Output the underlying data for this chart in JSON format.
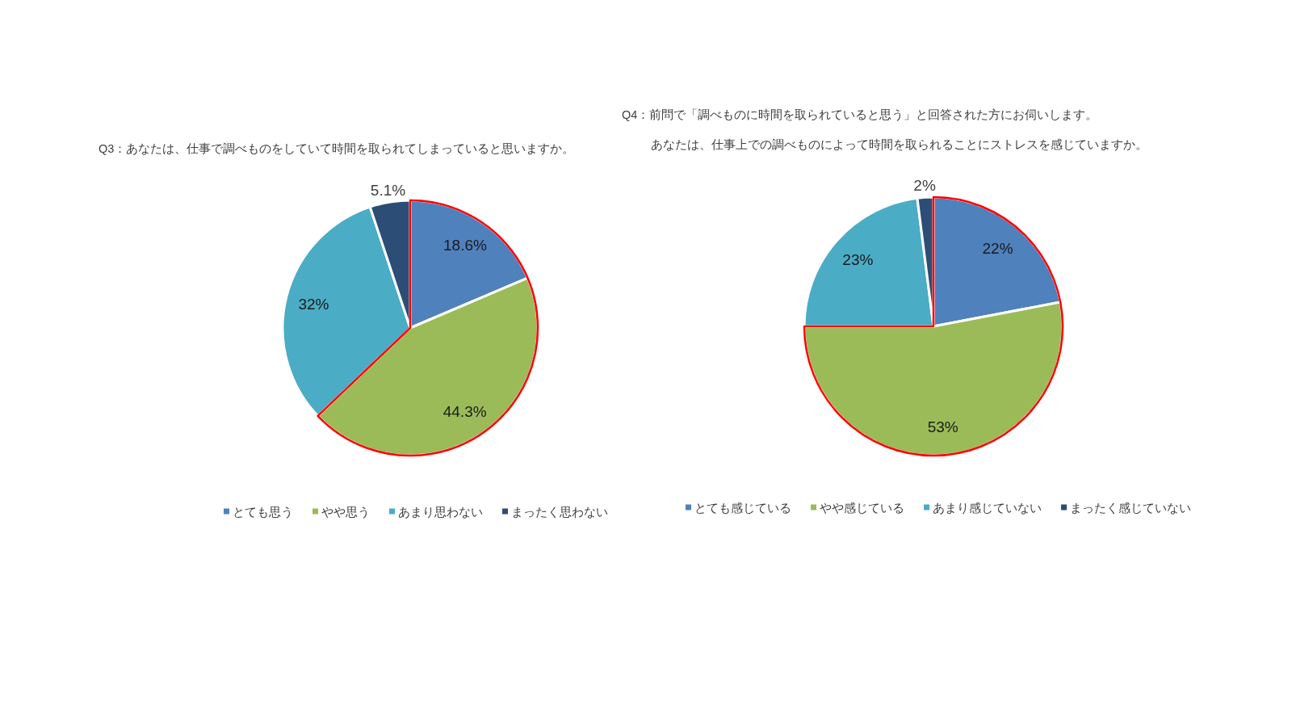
{
  "chart_data": [
    {
      "type": "pie",
      "title": "Q3：あなたは、仕事で調べものをしていて時間を取られてしまっていると思いますか。",
      "categories": [
        "とても思う",
        "やや思う",
        "あまり思わない",
        "まったく思わない"
      ],
      "values": [
        18.6,
        44.3,
        32,
        5.1
      ],
      "colors": [
        "#4f81bd",
        "#9bbb59",
        "#4bacc6",
        "#2c4d75"
      ],
      "value_labels": [
        "18.6%",
        "44.3%",
        "32%",
        "5.1%"
      ],
      "legend": "bottom"
    },
    {
      "type": "pie",
      "title": "Q4：前問で「調べものに時間を取られていると思う」と回答された方にお伺いします。",
      "subtitle": "あなたは、仕事上での調べものによって時間を取られることにストレスを感じていますか。",
      "categories": [
        "とても感じている",
        "やや感じている",
        "あまり感じていない",
        "まったく感じていない"
      ],
      "values": [
        22,
        53,
        23,
        2
      ],
      "colors": [
        "#4f81bd",
        "#9bbb59",
        "#4bacc6",
        "#2c4d75"
      ],
      "value_labels": [
        "22%",
        "53%",
        "23%",
        "2%"
      ],
      "legend": "bottom"
    }
  ]
}
